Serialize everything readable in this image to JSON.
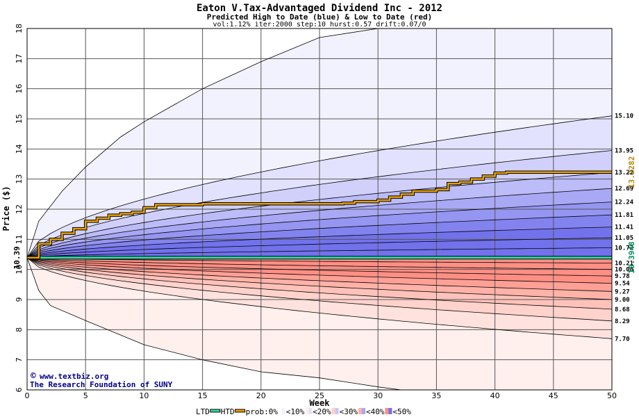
{
  "chart_data": {
    "type": "area",
    "title": "Eaton V.Tax-Advantaged Dividend Inc - 2012",
    "subtitle": "Predicted High to Date (blue) &  Low to Date (red)",
    "params": "vol:1.12% iter:2000 step:10 hurst:0.57 drift:0.07/0",
    "xlabel": "Week",
    "ylabel": "Price ($)",
    "xlim": [
      0,
      50
    ],
    "ylim": [
      6,
      18
    ],
    "x_ticks": [
      "0",
      "5",
      "10",
      "15",
      "20",
      "25",
      "30",
      "35",
      "40",
      "45",
      "50"
    ],
    "y_ticks": [
      "6",
      "7",
      "8",
      "9",
      "10",
      "11",
      "12",
      "13",
      "14",
      "15",
      "16",
      "17",
      "18"
    ],
    "start_price": 10.39,
    "start_label": "10.39",
    "htd_current": 13.2282,
    "htd_current_label": "13.2282",
    "ltd_current": 10.3948,
    "ltd_current_label": "10.3948",
    "high_levels": [
      {
        "label": "15.10",
        "value": 15.1
      },
      {
        "label": "13.95",
        "value": 13.95
      },
      {
        "label": "13.22",
        "value": 13.22
      },
      {
        "label": "12.69",
        "value": 12.69
      },
      {
        "label": "12.24",
        "value": 12.24
      },
      {
        "label": "11.81",
        "value": 11.81
      },
      {
        "label": "11.41",
        "value": 11.41
      },
      {
        "label": "11.05",
        "value": 11.05
      },
      {
        "label": "10.72",
        "value": 10.72
      }
    ],
    "low_levels": [
      {
        "label": "10.21",
        "value": 10.21
      },
      {
        "label": "10.00",
        "value": 10.0
      },
      {
        "label": "9.78",
        "value": 9.78
      },
      {
        "label": "9.54",
        "value": 9.54
      },
      {
        "label": "9.27",
        "value": 9.27
      },
      {
        "label": "9.00",
        "value": 9.0
      },
      {
        "label": "8.68",
        "value": 8.68
      },
      {
        "label": "8.29",
        "value": 8.29
      },
      {
        "label": "7.70",
        "value": 7.7
      }
    ],
    "outer_high_curve": [
      [
        0,
        10.39
      ],
      [
        1,
        11.6
      ],
      [
        3,
        12.6
      ],
      [
        5,
        13.4
      ],
      [
        8,
        14.4
      ],
      [
        10,
        14.9
      ],
      [
        15,
        16.0
      ],
      [
        20,
        16.9
      ],
      [
        25,
        17.7
      ],
      [
        30,
        18.3
      ]
    ],
    "outer_low_curve": [
      [
        0,
        10.39
      ],
      [
        1,
        9.3
      ],
      [
        2,
        8.8
      ],
      [
        5,
        8.3
      ],
      [
        10,
        7.5
      ],
      [
        15,
        7.0
      ],
      [
        20,
        6.6
      ],
      [
        25,
        6.4
      ],
      [
        30,
        6.1
      ],
      [
        32,
        6.0
      ]
    ],
    "htd_path": [
      [
        0,
        10.39
      ],
      [
        1,
        10.85
      ],
      [
        2,
        11.0
      ],
      [
        3,
        11.2
      ],
      [
        4,
        11.35
      ],
      [
        5,
        11.6
      ],
      [
        6,
        11.7
      ],
      [
        7,
        11.8
      ],
      [
        8,
        11.85
      ],
      [
        9,
        11.9
      ],
      [
        10,
        12.05
      ],
      [
        11,
        12.15
      ],
      [
        12,
        12.15
      ],
      [
        15,
        12.18
      ],
      [
        20,
        12.18
      ],
      [
        25,
        12.18
      ],
      [
        27,
        12.2
      ],
      [
        28,
        12.25
      ],
      [
        30,
        12.3
      ],
      [
        31,
        12.4
      ],
      [
        32,
        12.5
      ],
      [
        33,
        12.6
      ],
      [
        35,
        12.65
      ],
      [
        36,
        12.85
      ],
      [
        37,
        12.9
      ],
      [
        38,
        13.0
      ],
      [
        39,
        13.1
      ],
      [
        40,
        13.2
      ],
      [
        41,
        13.23
      ],
      [
        50,
        13.23
      ]
    ],
    "ltd_path": [
      [
        0,
        10.39
      ],
      [
        50,
        10.39
      ]
    ],
    "legend": {
      "ltd": "LTD",
      "htd": "HTD",
      "prob_prefix": "prob:0%",
      "items": [
        "<10%",
        "<20%",
        "<30%",
        "<40%",
        "<50%"
      ]
    },
    "colors": {
      "htd_line": "#e8a000",
      "ltd_line": "#2edba5",
      "blue_bands": [
        "#f2f2ff",
        "#e2e2ff",
        "#d0d0fb",
        "#bcbcf8",
        "#a8a8f5",
        "#9595f2",
        "#8383ef",
        "#7272ec"
      ],
      "red_bands": [
        "#fff0ee",
        "#ffe2de",
        "#ffd2cc",
        "#ffc2ba",
        "#ffb2a8",
        "#ffa096",
        "#ff8f84"
      ],
      "highlight_label": "#b8860b",
      "ltd_label": "#008b5a",
      "watermark": "#00008b"
    },
    "grid": true
  },
  "watermark": {
    "site": "www.textbiz.org",
    "org": "The Research Foundation of SUNY"
  }
}
